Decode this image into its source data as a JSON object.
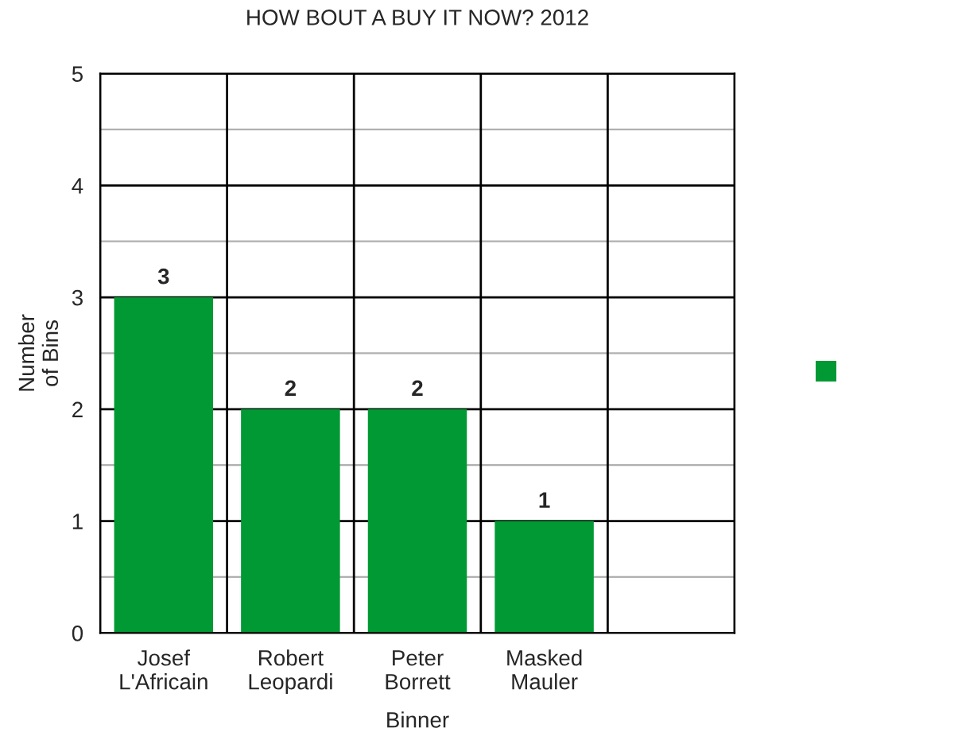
{
  "chart_data": {
    "type": "bar",
    "title": "HOW BOUT A BUY IT NOW? 2012",
    "xlabel": "Binner",
    "ylabel": "Number\nof Bins",
    "categories": [
      "Josef\nL'Africain",
      "Robert\nLeopardi",
      "Peter\nBorrett",
      "Masked\nMauler",
      null
    ],
    "series": [
      {
        "color": "#009933",
        "values": [
          3,
          2,
          2,
          1,
          null
        ]
      }
    ],
    "ylim": [
      0,
      5
    ],
    "yticks": [
      0,
      {
        "value": 0.5,
        "label": null
      },
      1,
      {
        "value": 1.5,
        "label": null
      },
      2,
      {
        "value": 2.5,
        "label": null
      },
      3,
      {
        "value": 3.5,
        "label": null
      },
      4,
      {
        "value": 4.5,
        "label": null
      },
      5
    ],
    "grid": true,
    "data_labels": true
  }
}
